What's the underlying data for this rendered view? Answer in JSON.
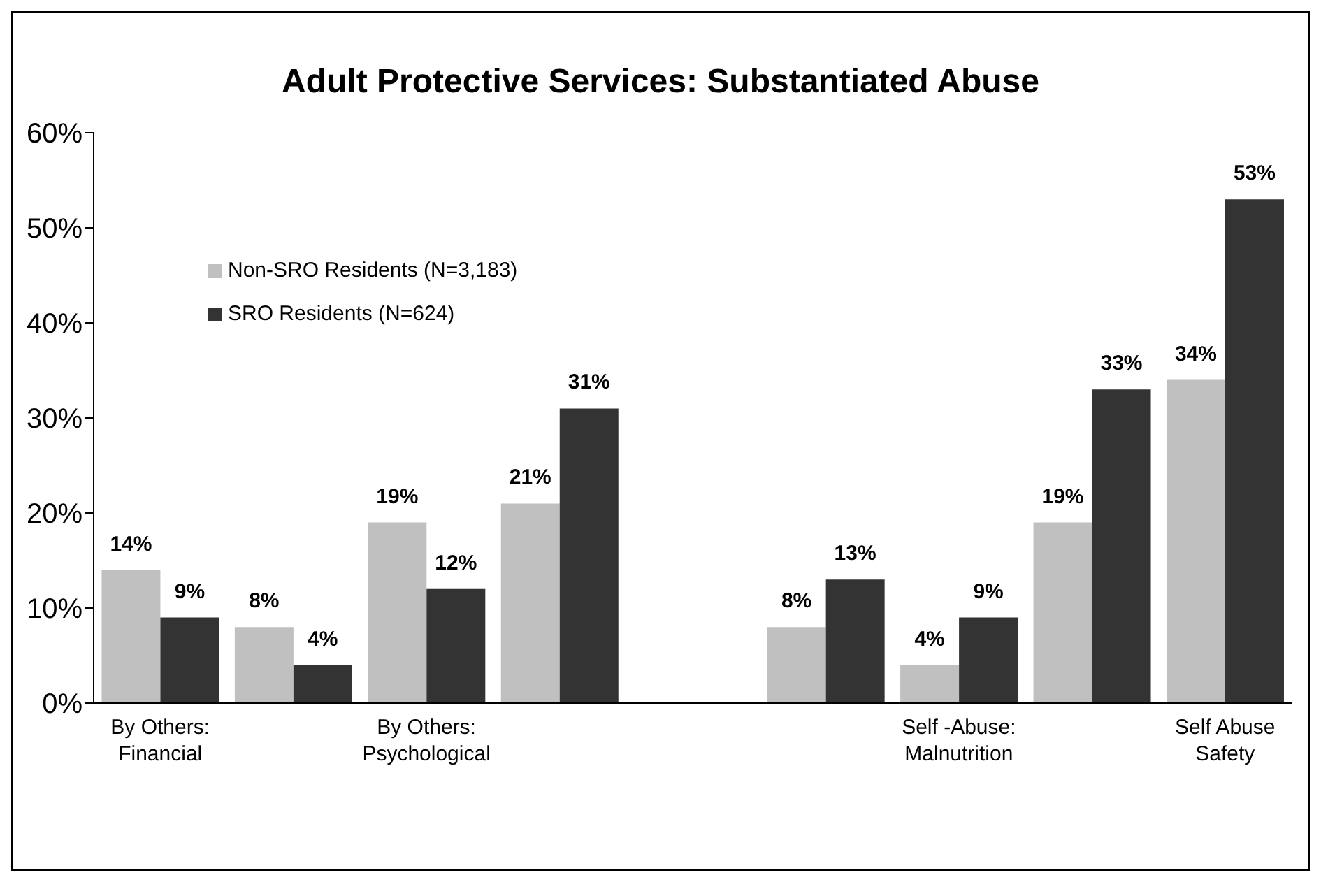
{
  "chart_data": {
    "type": "bar",
    "title": "Adult Protective Services: Substantiated Abuse",
    "categories": [
      "By Others:\nFinancial",
      null,
      "By Others:\nPsychological",
      null,
      null,
      null,
      "Self -Abuse:\nMalnutrition",
      null,
      "Self Abuse\nSafety"
    ],
    "series": [
      {
        "name": "Non-SRO Residents (N=3,183)",
        "color": "#c0c0c0",
        "values": [
          14,
          8,
          19,
          21,
          null,
          8,
          4,
          19,
          34
        ],
        "value_labels": [
          "14%",
          "8%",
          "19%",
          "21%",
          null,
          "8%",
          "4%",
          "19%",
          "34%"
        ]
      },
      {
        "name": "SRO Residents (N=624)",
        "color": "#333333",
        "values": [
          9,
          4,
          12,
          31,
          null,
          13,
          9,
          33,
          53
        ],
        "value_labels": [
          "9%",
          "4%",
          "12%",
          "31%",
          null,
          "13%",
          "9%",
          "33%",
          "53%"
        ]
      }
    ],
    "ylim": [
      0,
      60
    ],
    "yticks": [
      {
        "value": 0,
        "label": "0%"
      },
      {
        "value": 10,
        "label": "10%"
      },
      {
        "value": 20,
        "label": "20%"
      },
      {
        "value": 30,
        "label": "30%"
      },
      {
        "value": 40,
        "label": "40%"
      },
      {
        "value": 50,
        "label": "50%"
      },
      {
        "value": 60,
        "label": "60%"
      }
    ],
    "legend": "top left",
    "grid": false
  }
}
